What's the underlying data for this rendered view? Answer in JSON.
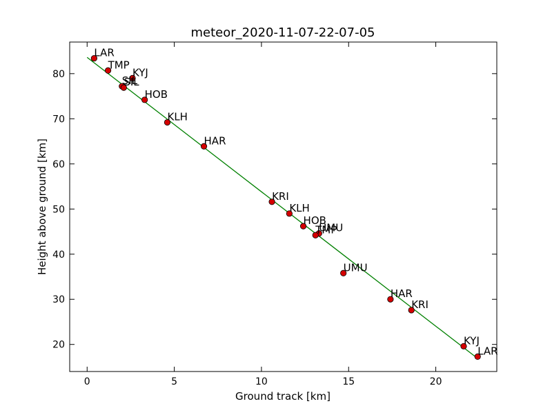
{
  "chart_data": {
    "type": "scatter",
    "title": "meteor_2020-11-07-22-07-05",
    "xlabel": "Ground track [km]",
    "ylabel": "Height above ground [km]",
    "xlim": [
      -1,
      23.5
    ],
    "ylim": [
      14,
      87
    ],
    "xticks": [
      0,
      5,
      10,
      15,
      20
    ],
    "yticks": [
      20,
      30,
      40,
      50,
      60,
      70,
      80
    ],
    "grid": false,
    "point_color": "#d40000",
    "line_color": "#008000",
    "fit_line": {
      "x": [
        0,
        22.4
      ],
      "y": [
        83.6,
        16.9
      ]
    },
    "points": [
      {
        "label": "LAR",
        "x": 0.4,
        "y": 83.4
      },
      {
        "label": "TMP",
        "x": 1.2,
        "y": 80.7
      },
      {
        "label": "KYJ",
        "x": 2.6,
        "y": 79.0
      },
      {
        "label": "SIL",
        "x": 2.0,
        "y": 77.2
      },
      {
        "label": "SIL",
        "x": 2.1,
        "y": 76.9
      },
      {
        "label": "HOB",
        "x": 3.3,
        "y": 74.2
      },
      {
        "label": "KLH",
        "x": 4.6,
        "y": 69.2
      },
      {
        "label": "HAR",
        "x": 6.7,
        "y": 63.9
      },
      {
        "label": "KRI",
        "x": 10.6,
        "y": 51.6
      },
      {
        "label": "KLH",
        "x": 11.6,
        "y": 49.0
      },
      {
        "label": "HOB",
        "x": 12.4,
        "y": 46.2
      },
      {
        "label": "UMU",
        "x": 13.3,
        "y": 44.6
      },
      {
        "label": "TMP",
        "x": 13.1,
        "y": 44.2
      },
      {
        "label": "UMU",
        "x": 14.7,
        "y": 35.8
      },
      {
        "label": "HAR",
        "x": 17.4,
        "y": 30.0
      },
      {
        "label": "KRI",
        "x": 18.6,
        "y": 27.6
      },
      {
        "label": "KYJ",
        "x": 21.6,
        "y": 19.6
      },
      {
        "label": "LAR",
        "x": 22.4,
        "y": 17.3
      }
    ]
  }
}
